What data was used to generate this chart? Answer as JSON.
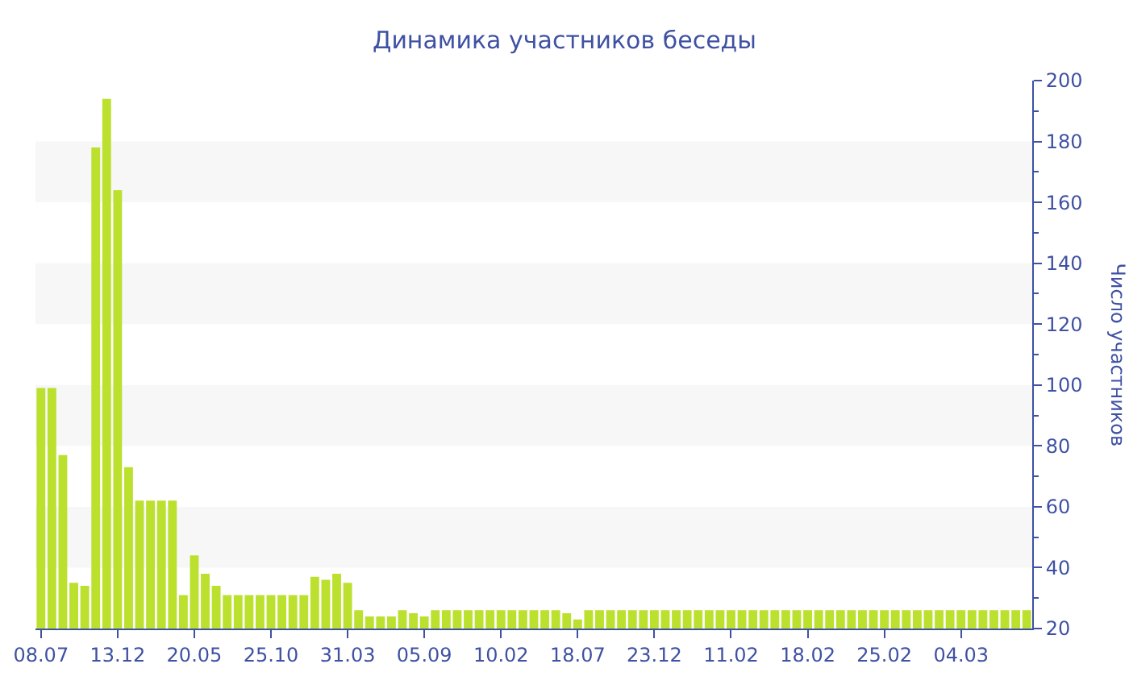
{
  "chart_data": {
    "type": "bar",
    "title": "Динамика участников беседы",
    "ylabel": "Число участников",
    "categories": [
      "08.07",
      null,
      null,
      null,
      null,
      null,
      null,
      "13.12",
      null,
      null,
      null,
      null,
      null,
      null,
      "20.05",
      null,
      null,
      null,
      null,
      null,
      null,
      "25.10",
      null,
      null,
      null,
      null,
      null,
      null,
      "31.03",
      null,
      null,
      null,
      null,
      null,
      null,
      "05.09",
      null,
      null,
      null,
      null,
      null,
      null,
      "10.02",
      null,
      null,
      null,
      null,
      null,
      null,
      "18.07",
      null,
      null,
      null,
      null,
      null,
      null,
      "23.12",
      null,
      null,
      null,
      null,
      null,
      null,
      "11.02",
      null,
      null,
      null,
      null,
      null,
      null,
      "18.02",
      null,
      null,
      null,
      null,
      null,
      null,
      "25.02",
      null,
      null,
      null,
      null,
      null,
      null,
      "04.03",
      null,
      null,
      null,
      null,
      null,
      null
    ],
    "values": [
      99,
      99,
      77,
      35,
      34,
      178,
      194,
      164,
      73,
      62,
      62,
      62,
      62,
      31,
      44,
      38,
      34,
      31,
      31,
      31,
      31,
      31,
      31,
      31,
      31,
      37,
      36,
      38,
      35,
      26,
      24,
      24,
      24,
      26,
      25,
      24,
      26,
      26,
      26,
      26,
      26,
      26,
      26,
      26,
      26,
      26,
      26,
      26,
      25,
      23,
      26,
      26,
      26,
      26,
      26,
      26,
      26,
      26,
      26,
      26,
      26,
      26,
      26,
      26,
      26,
      26,
      26,
      26,
      26,
      26,
      26,
      26,
      26,
      26,
      26,
      26,
      26,
      26,
      26,
      26,
      26,
      26,
      26,
      26,
      26,
      26,
      26,
      26,
      26,
      26,
      26
    ],
    "color": "#bbe02e",
    "ylim": [
      20,
      200
    ],
    "yticks": [
      20,
      40,
      60,
      80,
      100,
      120,
      140,
      160,
      180,
      200
    ],
    "bands": [
      {
        "axis": "y",
        "from": 40,
        "to": 60,
        "color": "#f7f7f7"
      },
      {
        "axis": "y",
        "from": 80,
        "to": 100,
        "color": "#f7f7f7"
      },
      {
        "axis": "y",
        "from": 120,
        "to": 140,
        "color": "#f7f7f7"
      },
      {
        "axis": "y",
        "from": 160,
        "to": 180,
        "color": "#f7f7f7"
      }
    ],
    "grid": false,
    "legend": false
  }
}
